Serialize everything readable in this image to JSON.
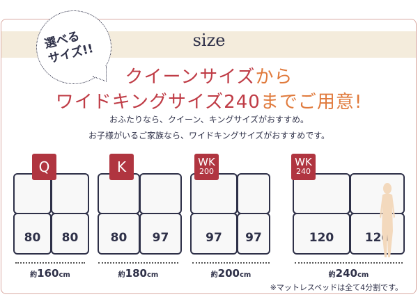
{
  "header": {
    "title": "size"
  },
  "bubble": {
    "line1": "選べる",
    "line2": "サイズ!!"
  },
  "headline": {
    "line1_main": "クイーンサイズ",
    "line1_accent": "から",
    "line2_main": "ワイドキングサイズ240",
    "line2_accent": "までご用意!"
  },
  "description": [
    "おふたりなら、クイーン、キングサイズがおすすめ。",
    "お子様がいるご家族なら、ワイドキングサイズがおすすめです。"
  ],
  "colors": {
    "accent_red": "#bf3b45",
    "accent_orange": "#e07a3c",
    "badge": "#b03540",
    "navy": "#2e3048",
    "band": "#f4ecdc"
  },
  "beds": [
    {
      "badge": "Q",
      "badge_sub": "",
      "left": "80",
      "right": "80",
      "prefix": "約",
      "width": "160",
      "unit": "cm"
    },
    {
      "badge": "K",
      "badge_sub": "",
      "left": "80",
      "right": "97",
      "prefix": "約",
      "width": "180",
      "unit": "cm"
    },
    {
      "badge": "WK",
      "badge_sub": "200",
      "left": "97",
      "right": "97",
      "prefix": "約",
      "width": "200",
      "unit": "cm"
    },
    {
      "badge": "WK",
      "badge_sub": "240",
      "left": "120",
      "right": "120",
      "prefix": "約",
      "width": "240",
      "unit": "cm"
    }
  ],
  "note": "※マットレスベッドは全て4分割です。"
}
